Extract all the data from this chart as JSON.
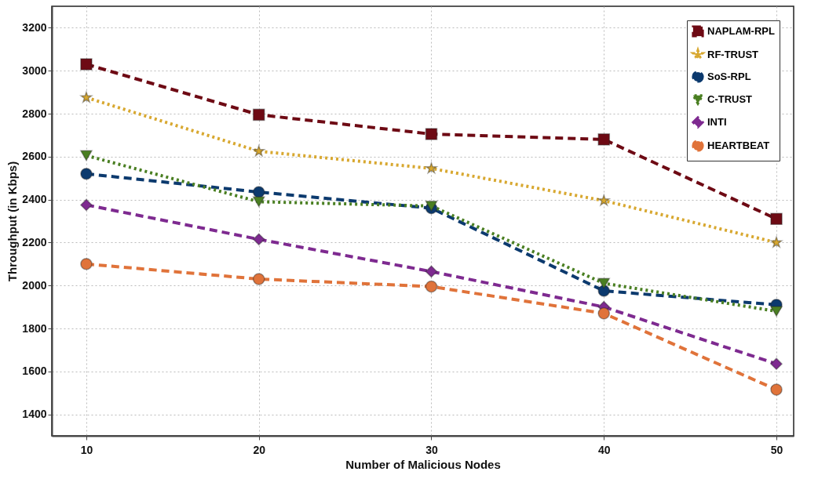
{
  "chart_data": {
    "type": "line",
    "xlabel": "Number of Malicious Nodes",
    "ylabel": "Throughput (in Kbps)",
    "x": [
      10,
      20,
      30,
      40,
      50
    ],
    "xlim": [
      8,
      51
    ],
    "xticks": [
      10,
      20,
      30,
      40,
      50
    ],
    "ylim": [
      1300,
      3300
    ],
    "yticks": [
      1400,
      1600,
      1800,
      2000,
      2200,
      2400,
      2600,
      2800,
      3000,
      3200
    ],
    "grid": true,
    "legend": "top right",
    "series": [
      {
        "name": "NAPLAM-RPL",
        "color": "#6e0a14",
        "marker": "square",
        "line_style": "dashed",
        "values": [
          3030,
          2795,
          2705,
          2680,
          2310
        ]
      },
      {
        "name": "RF-TRUST",
        "color": "#d8a830",
        "marker": "star",
        "line_style": "dotted",
        "values": [
          2875,
          2625,
          2545,
          2395,
          2200
        ]
      },
      {
        "name": "SoS-RPL",
        "color": "#0c3a6e",
        "marker": "circle",
        "line_style": "dashed",
        "values": [
          2520,
          2435,
          2360,
          1975,
          1910
        ]
      },
      {
        "name": "C-TRUST",
        "color": "#4a7f22",
        "marker": "triangle",
        "line_style": "dotted",
        "values": [
          2605,
          2390,
          2370,
          2010,
          1880
        ]
      },
      {
        "name": "INTI",
        "color": "#7e2a90",
        "marker": "diamond",
        "line_style": "dashed",
        "values": [
          2375,
          2215,
          2065,
          1900,
          1635
        ]
      },
      {
        "name": "HEARTBEAT",
        "color": "#e0733a",
        "marker": "circle",
        "line_style": "dashed",
        "values": [
          2100,
          2030,
          1995,
          1870,
          1515
        ]
      }
    ]
  }
}
